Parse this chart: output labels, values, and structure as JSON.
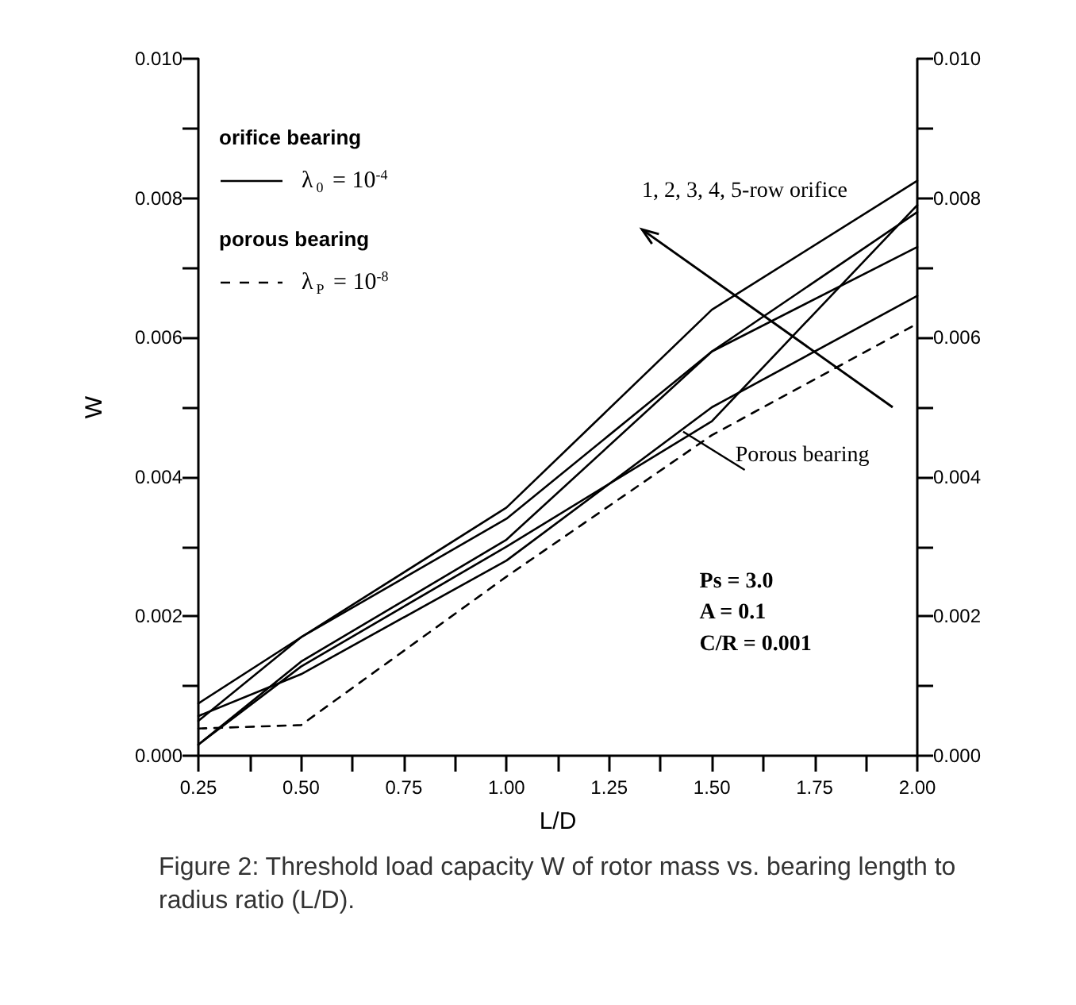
{
  "chart_data": {
    "type": "line",
    "xlabel": "L/D",
    "ylabel": "W",
    "x": [
      0.25,
      0.5,
      1.0,
      1.5,
      2.0
    ],
    "series": [
      {
        "name": "λ$_{0}$ = 10$^{-4}$",
        "color": "#000000",
        "line_style": "solid",
        "values": [
          0.00075,
          0.0017,
          0.0034,
          0.0058,
          0.0073
        ]
      },
      {
        "color": "#000000",
        "line_style": "solid",
        "values": [
          0.00057,
          0.00117,
          0.0028,
          0.005,
          0.0066
        ]
      },
      {
        "color": "#000000",
        "line_style": "solid",
        "values": [
          0.0005,
          0.0017,
          0.00356,
          0.0064,
          0.00825
        ]
      },
      {
        "color": "#000000",
        "line_style": "solid",
        "values": [
          0.00016,
          0.00135,
          0.0031,
          0.0058,
          0.0078
        ]
      },
      {
        "color": "#000000",
        "line_style": "solid",
        "values": [
          0.00016,
          0.00128,
          0.003,
          0.0048,
          0.0079
        ]
      },
      {
        "name": "λ$_{P}$ = 10$^{-8}$",
        "color": "#000000",
        "line_style": "dashed",
        "values": [
          0.00039,
          0.00044,
          0.00257,
          0.0046,
          0.0062
        ]
      }
    ],
    "xlim": [
      0.25,
      2.0
    ],
    "xticks": [
      {
        "value": 0.25,
        "label": "0.25"
      },
      {
        "value": 0.375,
        "label": null
      },
      {
        "value": 0.5,
        "label": "0.50"
      },
      {
        "value": 0.625,
        "label": null
      },
      {
        "value": 0.75,
        "label": "0.75"
      },
      {
        "value": 0.875,
        "label": null
      },
      {
        "value": 1.0,
        "label": "1.00"
      },
      {
        "value": 1.125,
        "label": null
      },
      {
        "value": 1.25,
        "label": "1.25"
      },
      {
        "value": 1.375,
        "label": null
      },
      {
        "value": 1.5,
        "label": "1.50"
      },
      {
        "value": 1.625,
        "label": null
      },
      {
        "value": 1.75,
        "label": "1.75"
      },
      {
        "value": 1.875,
        "label": null
      },
      {
        "value": 2.0,
        "label": "2.00"
      }
    ],
    "ylim": [
      0,
      0.01
    ],
    "yticks": [
      {
        "value": 0,
        "label": "0.000"
      },
      {
        "value": 0.001,
        "label": null
      },
      {
        "value": 0.002,
        "label": "0.002"
      },
      {
        "value": 0.003,
        "label": null
      },
      {
        "value": 0.004,
        "label": "0.004"
      },
      {
        "value": 0.005,
        "label": null
      },
      {
        "value": 0.006,
        "label": "0.006"
      },
      {
        "value": 0.007,
        "label": null
      },
      {
        "value": 0.008,
        "label": "0.008"
      },
      {
        "value": 0.009,
        "label": null
      },
      {
        "value": 0.01,
        "label": "0.010"
      }
    ],
    "y2lim": [
      0,
      0.01
    ],
    "y2ticks": [
      {
        "value": 0,
        "label": "0.000"
      },
      {
        "value": 0.001,
        "label": null
      },
      {
        "value": 0.002,
        "label": "0.002"
      },
      {
        "value": 0.003,
        "label": null
      },
      {
        "value": 0.004,
        "label": "0.004"
      },
      {
        "value": 0.005,
        "label": null
      },
      {
        "value": 0.006,
        "label": "0.006"
      },
      {
        "value": 0.007,
        "label": null
      },
      {
        "value": 0.008,
        "label": "0.008"
      },
      {
        "value": 0.009,
        "label": null
      },
      {
        "value": 0.01,
        "label": "0.010"
      }
    ],
    "grid": false,
    "legend": "top left",
    "marker": "none",
    "legend_title": "orifice bearing",
    "annotations": [
      "porous bearing",
      "1, 2, 3, 4, 5-row orifice",
      "Porous bearing",
      "Ps = 3.0",
      "A = 0.1",
      "C/R = 0.001",
      "Figure 2: Threshold load capacity W of rotor mass vs. bearing length to radius ratio (L/D)."
    ]
  }
}
